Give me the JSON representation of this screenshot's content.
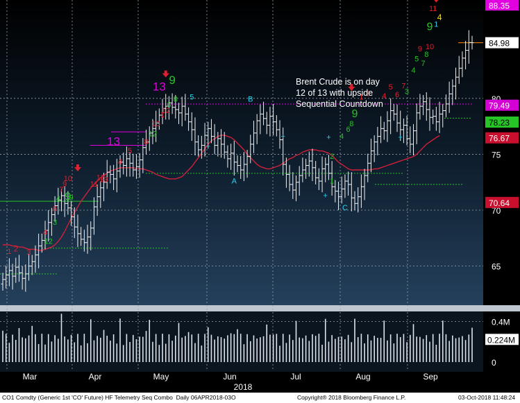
{
  "chart_data": {
    "type": "candlestick",
    "annotation": [
      "Brent Crude is on day",
      "12 of 13 with upside",
      "Sequential Countdown"
    ],
    "x_month_labels": [
      "Mar",
      "Apr",
      "May",
      "Jun",
      "Jul",
      "Aug",
      "Sep"
    ],
    "x_year_label": "2018",
    "y_ticks": [
      "65",
      "70",
      "75",
      "80"
    ],
    "ylim": [
      61.5,
      88.8
    ],
    "price_tags": [
      {
        "label": "88.35",
        "value": 88.35,
        "bg": "#e000e0",
        "fg": "#ffffff"
      },
      {
        "label": "84.98",
        "value": 84.98,
        "bg": "#ffffff",
        "fg": "#000000"
      },
      {
        "label": "79.49",
        "value": 79.49,
        "bg": "#d400d4",
        "fg": "#ffffff"
      },
      {
        "label": "78.23",
        "value": 78.23,
        "bg": "#27c427",
        "fg": "#000000"
      },
      {
        "label": "76.67",
        "value": 76.67,
        "bg": "#c8102e",
        "fg": "#ffffff"
      },
      {
        "label": "70.64",
        "value": 70.64,
        "bg": "#c8102e",
        "fg": "#ffffff"
      }
    ],
    "volume_ticks": [
      "0.4M",
      "0"
    ],
    "volume_tag": "0.224M",
    "volume_ylim": [
      0,
      0.5
    ],
    "close": [
      63.8,
      64.2,
      64.6,
      64.1,
      64.9,
      64.4,
      63.9,
      64.3,
      65.0,
      65.4,
      66.0,
      66.8,
      67.3,
      68.2,
      68.9,
      69.6,
      70.4,
      70.9,
      71.3,
      70.6,
      70.2,
      69.4,
      68.5,
      67.9,
      67.4,
      67.1,
      67.6,
      68.4,
      70.3,
      71.2,
      72.0,
      72.5,
      73.4,
      73.2,
      72.8,
      73.5,
      74.3,
      74.0,
      74.6,
      74.2,
      73.6,
      73.9,
      74.5,
      75.6,
      76.1,
      76.9,
      77.3,
      77.8,
      78.5,
      79.1,
      79.3,
      79.6,
      79.2,
      79.0,
      78.7,
      79.3,
      78.6,
      77.9,
      77.2,
      76.1,
      75.4,
      75.8,
      76.7,
      77.3,
      76.6,
      75.8,
      76.4,
      75.9,
      75.2,
      74.6,
      75.1,
      74.3,
      74.0,
      73.6,
      74.1,
      74.8,
      75.9,
      76.9,
      78.0,
      78.6,
      78.2,
      77.6,
      78.4,
      77.9,
      77.2,
      76.3,
      74.1,
      73.2,
      72.3,
      71.8,
      72.5,
      73.1,
      73.6,
      74.0,
      74.4,
      73.8,
      72.9,
      72.6,
      73.7,
      74.1,
      73.3,
      72.1,
      71.7,
      71.2,
      71.9,
      72.6,
      72.3,
      71.1,
      70.6,
      71.2,
      72.1,
      73.1,
      74.2,
      75.3,
      76.1,
      76.6,
      77.3,
      77.1,
      78.0,
      78.9,
      78.6,
      77.8,
      77.2,
      77.6,
      76.4,
      75.9,
      77.1,
      78.7,
      79.3,
      79.7,
      79.0,
      78.3,
      78.4,
      77.9,
      78.6,
      78.9,
      79.5,
      80.4,
      81.1,
      81.9,
      82.7,
      83.6,
      84.3,
      85.0,
      84.98
    ],
    "sma": [
      66.9,
      66.9,
      66.9,
      66.8,
      66.8,
      66.7,
      66.7,
      66.6,
      66.5,
      66.5,
      66.5,
      66.4,
      66.4,
      66.5,
      66.6,
      66.7,
      66.9,
      67.2,
      67.6,
      68.1,
      68.7,
      69.3,
      69.8,
      70.3,
      70.8,
      71.2,
      71.6,
      72.0,
      72.3,
      72.6,
      72.9,
      73.1,
      73.3,
      73.5,
      73.6,
      73.7,
      73.8,
      73.8,
      73.8,
      73.8,
      73.8,
      73.7,
      73.7,
      73.7,
      73.6,
      73.5,
      73.4,
      73.2,
      73.1,
      73.0,
      72.9,
      72.8,
      72.8,
      72.8,
      72.9,
      73.0,
      73.3,
      73.6,
      73.9,
      74.3,
      74.7,
      75.1,
      75.5,
      75.9,
      76.2,
      76.4,
      76.6,
      76.7,
      76.7,
      76.6,
      76.5,
      76.3,
      76.0,
      75.7,
      75.4,
      75.0,
      74.7,
      74.4,
      74.1,
      73.9,
      73.8,
      73.7,
      73.7,
      73.8,
      73.9,
      74.0,
      74.2,
      74.4,
      74.6,
      74.7,
      74.9,
      75.0,
      75.2,
      75.3,
      75.4,
      75.4,
      75.4,
      75.3,
      75.3,
      75.2,
      75.1,
      74.9,
      74.6,
      74.3,
      74.1,
      73.9,
      73.7,
      73.6,
      73.6,
      73.6,
      73.6,
      73.6,
      73.6,
      73.6,
      73.7,
      73.7,
      73.8,
      73.9,
      74.0,
      74.1,
      74.2,
      74.3,
      74.4,
      74.5,
      74.6,
      74.7,
      74.8,
      75.0,
      75.3,
      75.6,
      75.9,
      76.1,
      76.3,
      76.5,
      76.67
    ]
  }
}
